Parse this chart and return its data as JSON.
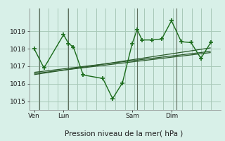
{
  "bg_color": "#c8e8d8",
  "plot_bg_color": "#d8f0e8",
  "grid_color": "#a8c8b8",
  "line_color": "#1a6b1a",
  "dark_line_color": "#2a5a2a",
  "title": "Pression niveau de la mer( hPa )",
  "ylim": [
    1014.5,
    1020.3
  ],
  "yticks": [
    1015,
    1016,
    1017,
    1018,
    1019
  ],
  "xtick_labels": [
    "Ven",
    "Lun",
    "Sam",
    "Dim"
  ],
  "xtick_positions": [
    0.5,
    3.5,
    10.5,
    14.5
  ],
  "vline_positions": [
    1,
    4,
    11,
    15
  ],
  "xlim": [
    0,
    19.5
  ],
  "data_x": [
    0.5,
    1.5,
    3.5,
    4.0,
    4.5,
    5.5,
    7.5,
    8.5,
    9.5,
    10.5,
    11.0,
    11.5,
    12.5,
    13.5,
    14.5,
    15.5,
    16.5,
    17.5,
    18.5
  ],
  "data_y": [
    1018.0,
    1016.9,
    1018.8,
    1018.3,
    1018.1,
    1016.5,
    1016.3,
    1015.15,
    1016.05,
    1018.3,
    1019.1,
    1018.5,
    1018.5,
    1018.55,
    1019.6,
    1018.4,
    1018.35,
    1017.45,
    1018.35
  ],
  "trend_lines": [
    {
      "x": [
        0.5,
        18.5
      ],
      "y": [
        1016.65,
        1017.85
      ]
    },
    {
      "x": [
        0.5,
        18.5
      ],
      "y": [
        1016.58,
        1017.78
      ]
    },
    {
      "x": [
        0.5,
        18.5
      ],
      "y": [
        1016.52,
        1018.05
      ]
    }
  ],
  "figsize": [
    3.2,
    2.0
  ],
  "dpi": 100
}
